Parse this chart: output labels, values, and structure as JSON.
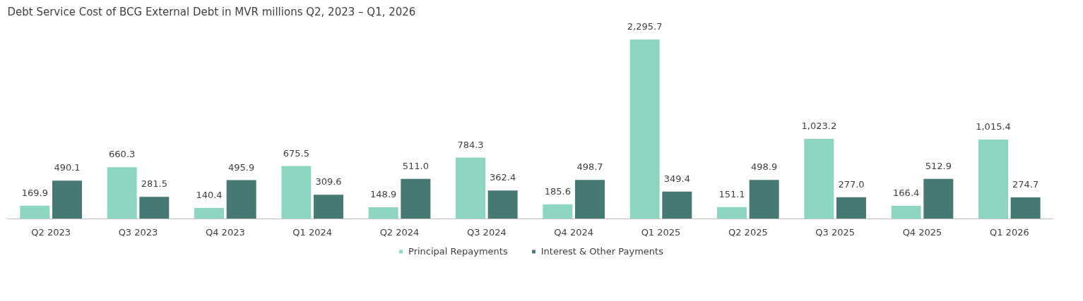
{
  "chart_data": {
    "type": "bar",
    "title": "Debt Service Cost of BCG External Debt in MVR millions Q2, 2023 – Q1, 2026",
    "categories": [
      "Q2 2023",
      "Q3 2023",
      "Q4 2023",
      "Q1 2024",
      "Q2 2024",
      "Q3 2024",
      "Q4 2024",
      "Q1 2025",
      "Q2 2025",
      "Q3 2025",
      "Q4 2025",
      "Q1 2026"
    ],
    "series": [
      {
        "name": "Principal Repayments",
        "color": "#8dd7c2",
        "values": [
          169.9,
          660.3,
          140.4,
          675.5,
          148.9,
          784.3,
          185.6,
          2295.7,
          151.1,
          1023.2,
          166.4,
          1015.4
        ],
        "value_labels": [
          "169.9",
          "660.3",
          "140.4",
          "675.5",
          "148.9",
          "784.3",
          "185.6",
          "2,295.7",
          "151.1",
          "1,023.2",
          "166.4",
          "1,015.4"
        ]
      },
      {
        "name": "Interest & Other Payments",
        "color": "#467874",
        "values": [
          490.1,
          281.5,
          495.9,
          309.6,
          511.0,
          362.4,
          498.7,
          349.4,
          498.9,
          277.0,
          512.9,
          274.7
        ],
        "value_labels": [
          "490.1",
          "281.5",
          "495.9",
          "309.6",
          "511.0",
          "362.4",
          "498.7",
          "349.4",
          "498.9",
          "277.0",
          "512.9",
          "274.7"
        ]
      }
    ],
    "legend": "bottom"
  }
}
